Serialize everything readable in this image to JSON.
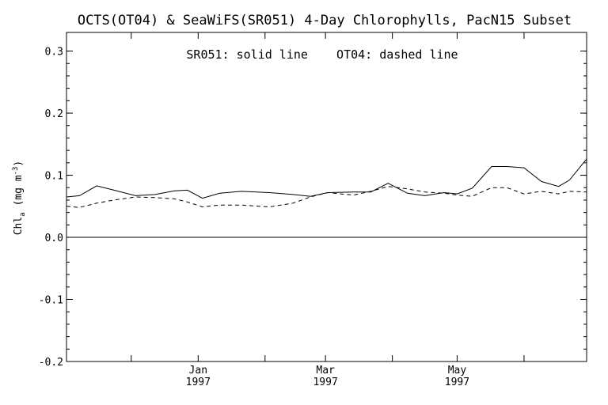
{
  "chart_data": {
    "type": "line",
    "title": "OCTS(OT04) & SeaWiFS(SR051) 4-Day Chlorophylls, PacN15 Subset",
    "annotation": "SR051: solid line    OT04: dashed line",
    "ylabel_main": "Chl",
    "ylabel_sub": "a",
    "ylabel_units": "(mg m",
    "ylabel_exp": "-3",
    "ylabel_close": ")",
    "xlabel": "",
    "ylim": [
      -0.2,
      0.33
    ],
    "xlim": [
      "1996-11-01",
      "1997-06-30"
    ],
    "grid": false,
    "reference_line_y": 0.0,
    "y_ticks": [
      {
        "value": -0.2,
        "label": "-0.2"
      },
      {
        "value": -0.1,
        "label": "-0.1"
      },
      {
        "value": 0.0,
        "label": "0.0"
      },
      {
        "value": 0.1,
        "label": "0.1"
      },
      {
        "value": 0.2,
        "label": "0.2"
      },
      {
        "value": 0.3,
        "label": "0.3"
      }
    ],
    "x_ticks": [
      {
        "date": "1996-12-01",
        "label": "",
        "label2": ""
      },
      {
        "date": "1997-01-01",
        "label": "Jan",
        "label2": "1997"
      },
      {
        "date": "1997-02-01",
        "label": "",
        "label2": ""
      },
      {
        "date": "1997-03-01",
        "label": "Mar",
        "label2": "1997"
      },
      {
        "date": "1997-04-01",
        "label": "",
        "label2": ""
      },
      {
        "date": "1997-05-01",
        "label": "May",
        "label2": "1997"
      },
      {
        "date": "1997-06-01",
        "label": "",
        "label2": ""
      }
    ],
    "series": [
      {
        "style": "solid",
        "x": [
          "1996-11-01",
          "1996-11-07",
          "1996-11-15",
          "1996-11-23",
          "1996-12-03",
          "1996-12-12",
          "1996-12-21",
          "1996-12-27",
          "1997-01-03",
          "1997-01-11",
          "1997-01-21",
          "1997-02-03",
          "1997-02-14",
          "1997-02-22",
          "1997-03-02",
          "1997-03-14",
          "1997-03-22",
          "1997-03-30",
          "1997-04-08",
          "1997-04-16",
          "1997-04-25",
          "1997-05-01",
          "1997-05-08",
          "1997-05-17",
          "1997-05-24",
          "1997-06-01",
          "1997-06-09",
          "1997-06-17",
          "1997-06-22",
          "1997-06-30"
        ],
        "y": [
          0.065,
          0.067,
          0.083,
          0.076,
          0.067,
          0.069,
          0.075,
          0.076,
          0.063,
          0.071,
          0.074,
          0.072,
          0.069,
          0.066,
          0.072,
          0.073,
          0.073,
          0.087,
          0.071,
          0.067,
          0.072,
          0.07,
          0.079,
          0.114,
          0.114,
          0.112,
          0.09,
          0.082,
          0.092,
          0.126
        ]
      },
      {
        "style": "dashed",
        "x": [
          "1996-11-01",
          "1996-11-07",
          "1996-11-15",
          "1996-11-23",
          "1996-12-03",
          "1996-12-12",
          "1996-12-21",
          "1996-12-27",
          "1997-01-03",
          "1997-01-11",
          "1997-01-21",
          "1997-02-03",
          "1997-02-14",
          "1997-02-22",
          "1997-03-02",
          "1997-03-14",
          "1997-03-22",
          "1997-03-30",
          "1997-04-08",
          "1997-04-16",
          "1997-04-25",
          "1997-05-01",
          "1997-05-08",
          "1997-05-17",
          "1997-05-24",
          "1997-06-01",
          "1997-06-09",
          "1997-06-17",
          "1997-06-22",
          "1997-06-30"
        ],
        "y": [
          0.05,
          0.048,
          0.055,
          0.06,
          0.065,
          0.064,
          0.062,
          0.057,
          0.049,
          0.052,
          0.052,
          0.049,
          0.055,
          0.065,
          0.072,
          0.068,
          0.074,
          0.082,
          0.078,
          0.073,
          0.071,
          0.068,
          0.066,
          0.08,
          0.08,
          0.07,
          0.074,
          0.07,
          0.074,
          0.073
        ]
      }
    ]
  }
}
